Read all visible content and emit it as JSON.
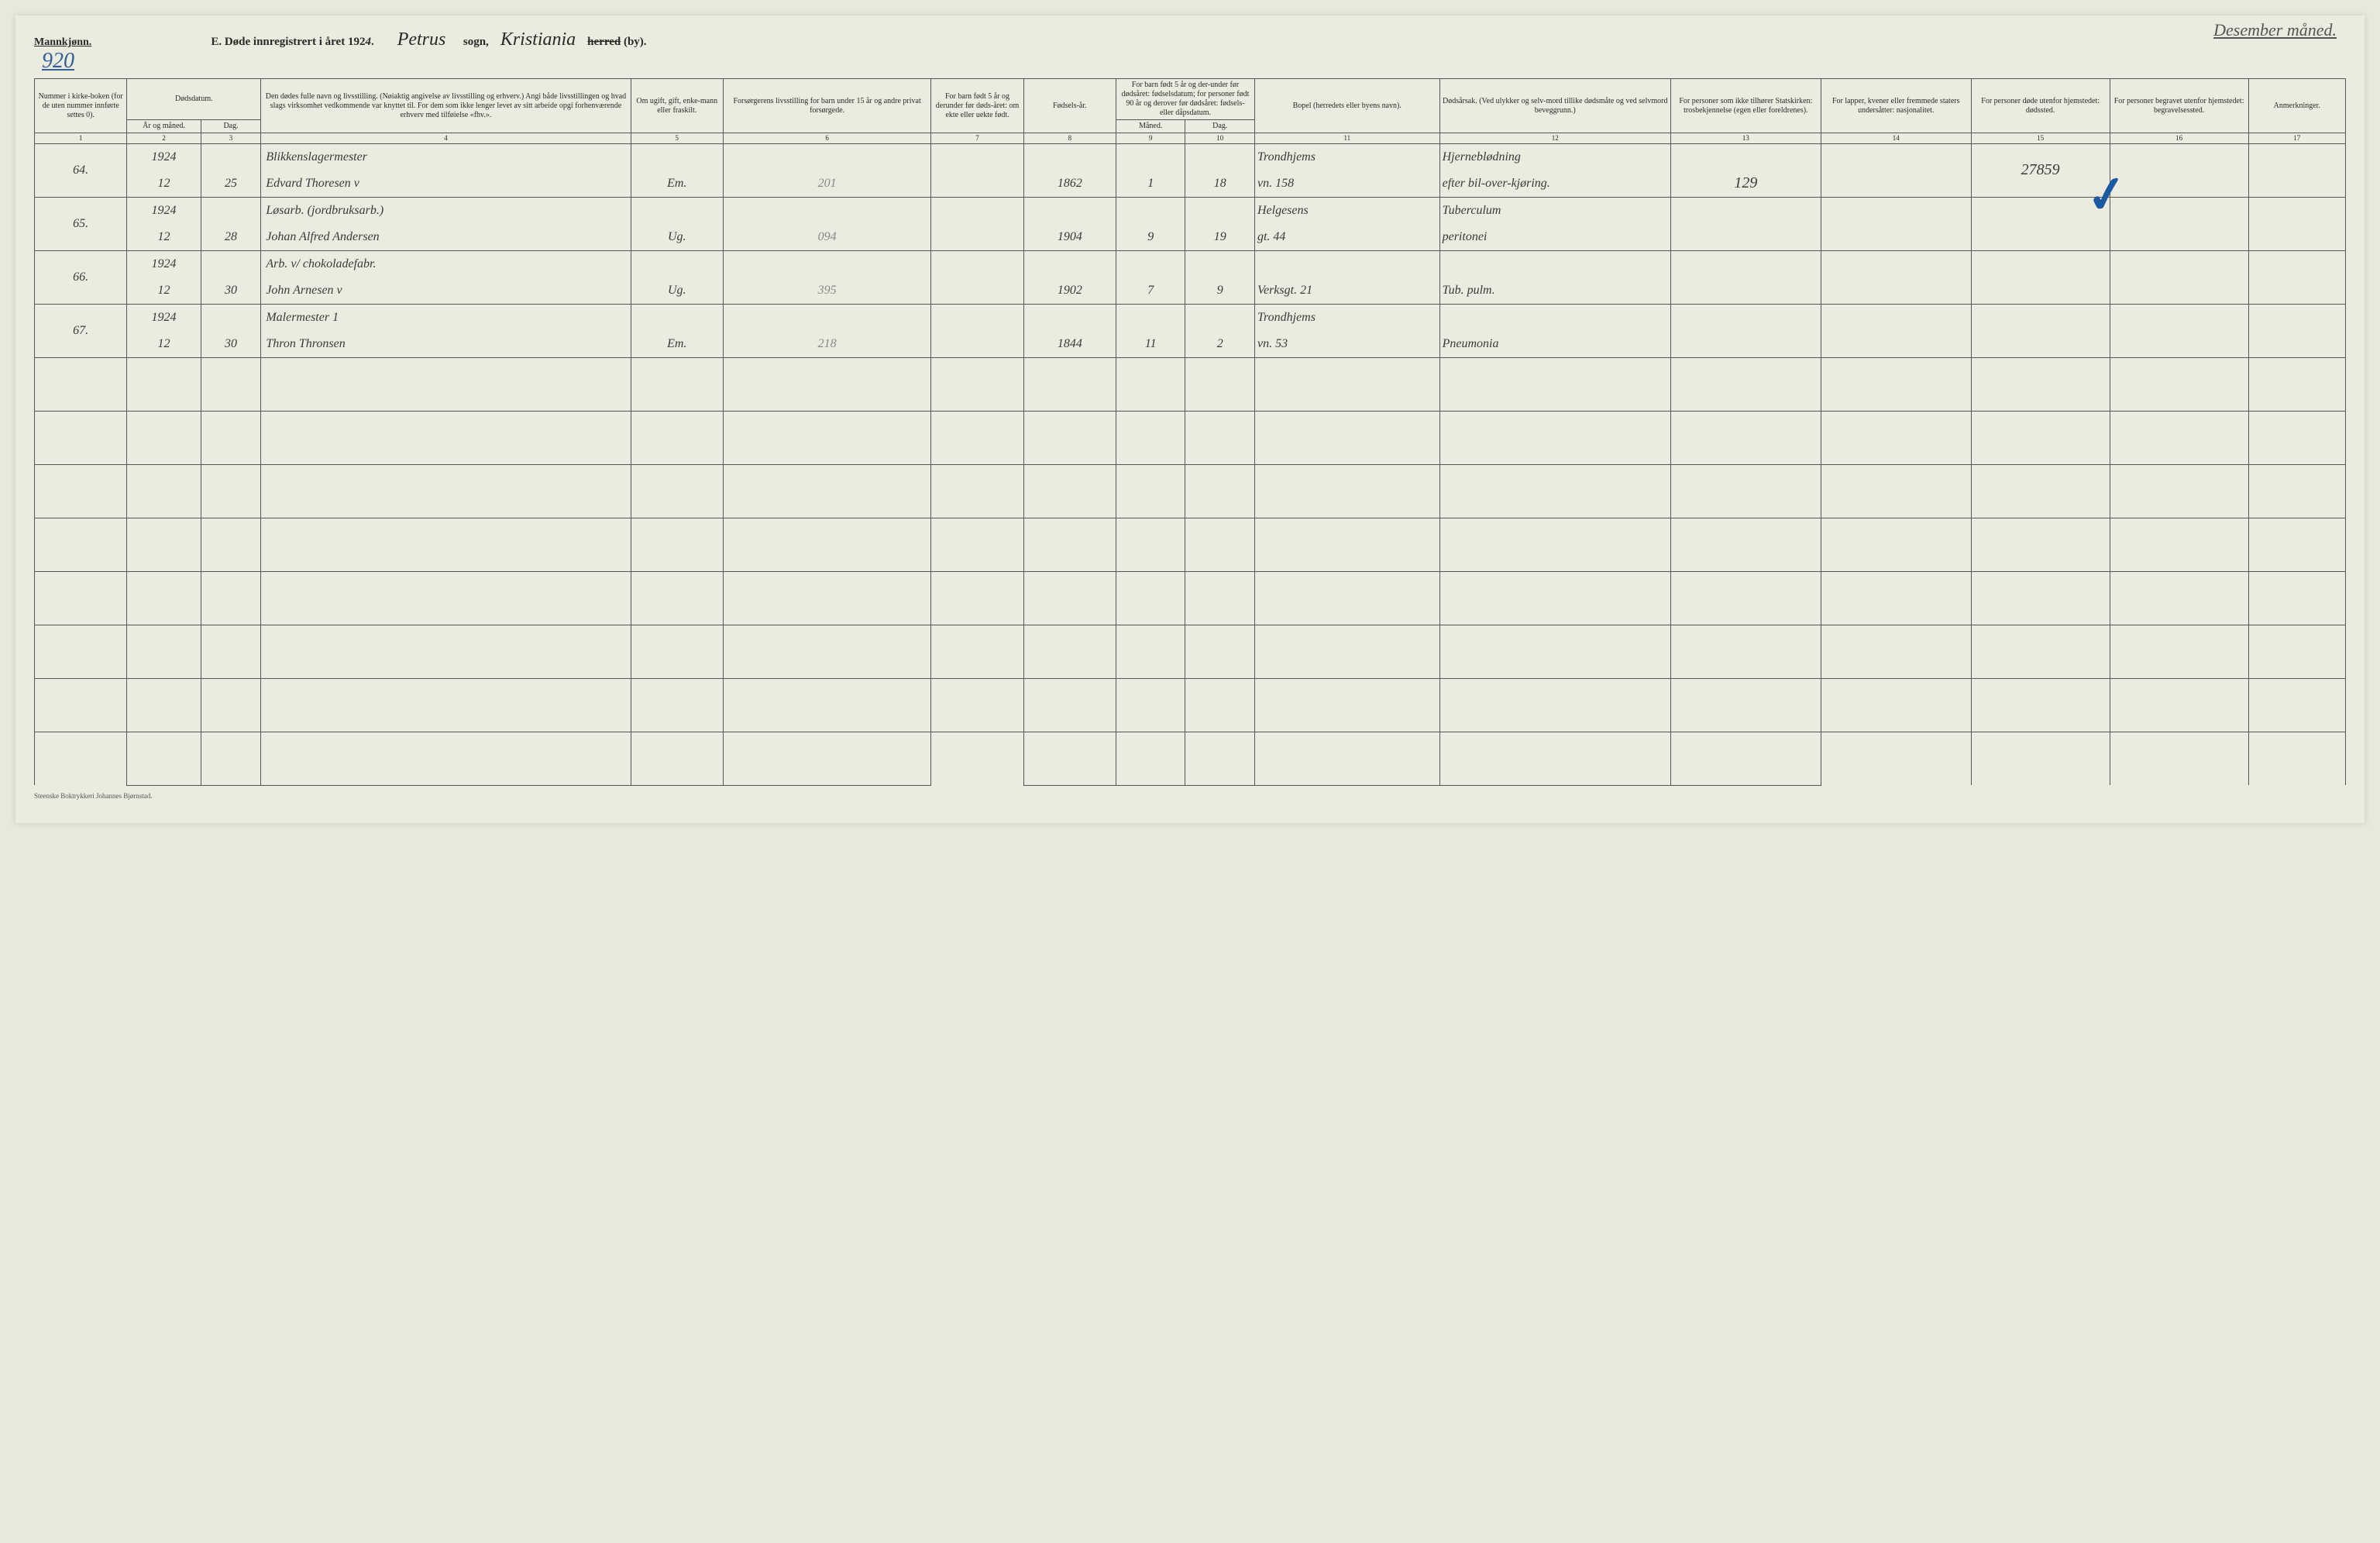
{
  "header": {
    "mannkjonn": "Mannkjønn.",
    "page_number": "920",
    "title_prefix": "E.  Døde innregistrert i året 192",
    "year_suffix": "4",
    "title_dot": ".",
    "sogn_value": "Petrus",
    "sogn_label": "sogn,",
    "herred_value": "Kristiania",
    "herred_struck": "herred",
    "herred_by": "(by).",
    "month_note": "Desember måned."
  },
  "columns": {
    "c1": "Nummer i kirke-boken (for de uten nummer innførte settes 0).",
    "c2_top": "Dødsdatum.",
    "c2a": "År og måned.",
    "c2b": "Dag.",
    "c4": "Den dødes fulle navn og livsstilling. (Nøiaktig angivelse av livsstilling og erhverv.) Angi både livsstillingen og hvad slags virksomhet vedkommende var knyttet til. For dem som ikke lenger levet av sitt arbeide opgi forhenværende erhverv med tilføielse «fhv.».",
    "c5": "Om ugift, gift, enke-mann eller fraskilt.",
    "c6": "Forsørgerens livsstilling for barn under 15 år og andre privat forsørgede.",
    "c7": "For barn født 5 år og derunder før døds-året: om ekte eller uekte født.",
    "c8": "Fødsels-år.",
    "c9_top": "For barn født 5 år og der-under før dødsåret: fødselsdatum; for personer født 90 år og derover før dødsåret: fødsels- eller dåpsdatum.",
    "c9a": "Måned.",
    "c9b": "Dag.",
    "c11": "Bopel (herredets eller byens navn).",
    "c12": "Dødsårsak. (Ved ulykker og selv-mord tillike dødsmåte og ved selvmord beveggrunn.)",
    "c13": "For personer som ikke tilhører Statskirken: trosbekjennelse (egen eller foreldrenes).",
    "c14": "For lapper, kvener eller fremmede staters undersåtter: nasjonalitet.",
    "c15": "For personer døde utenfor hjemstedet: dødssted.",
    "c16": "For personer begravet utenfor hjemstedet: begravelsessted.",
    "c17": "Anmerkninger."
  },
  "colnums": [
    "1",
    "2",
    "3",
    "4",
    "5",
    "6",
    "7",
    "8",
    "9",
    "10",
    "11",
    "12",
    "13",
    "14",
    "15",
    "16",
    "17"
  ],
  "rows": [
    {
      "num": "64.",
      "yr_top": "1924",
      "yr_bot": "12",
      "day": "25",
      "name_top": "Blikkenslagermester",
      "name_bot": "Edvard Thoresen   v",
      "status": "Em.",
      "forsorger": "201",
      "c7": "",
      "birth_yr": "1862",
      "b_mnd": "1",
      "b_dag": "18",
      "bopel_top": "Trondhjems",
      "bopel_bot": "vn. 158",
      "cause_top": "Hjerneblødning",
      "cause_bot": "efter bil-over-kjøring.",
      "c13": "129",
      "c15": "27859"
    },
    {
      "num": "65.",
      "yr_top": "1924",
      "yr_bot": "12",
      "day": "28",
      "name_top": "Løsarb. (jordbruksarb.)",
      "name_bot": "Johan Alfred Andersen",
      "status": "Ug.",
      "forsorger": "094",
      "c7": "",
      "birth_yr": "1904",
      "b_mnd": "9",
      "b_dag": "19",
      "bopel_top": "Helgesens",
      "bopel_bot": "gt. 44",
      "cause_top": "Tuberculum",
      "cause_bot": "peritonei",
      "c13": "",
      "c15": ""
    },
    {
      "num": "66.",
      "yr_top": "1924",
      "yr_bot": "12",
      "day": "30",
      "name_top": "Arb. v/ chokoladefabr.",
      "name_bot": "John Arnesen   v",
      "status": "Ug.",
      "forsorger": "395",
      "c7": "",
      "birth_yr": "1902",
      "b_mnd": "7",
      "b_dag": "9",
      "bopel_top": "",
      "bopel_bot": "Verksgt. 21",
      "cause_top": "",
      "cause_bot": "Tub. pulm.",
      "c13": "",
      "c15": ""
    },
    {
      "num": "67.",
      "yr_top": "1924",
      "yr_bot": "12",
      "day": "30",
      "name_top": "Malermester    1",
      "name_bot": "Thron Thronsen",
      "status": "Em.",
      "forsorger": "218",
      "c7": "",
      "birth_yr": "1844",
      "b_mnd": "11",
      "b_dag": "2",
      "bopel_top": "Trondhjems",
      "bopel_bot": "vn. 53",
      "cause_top": "",
      "cause_bot": "Pneumonia",
      "c13": "",
      "c15": ""
    }
  ],
  "blank_row_count": 8,
  "footer": "Steenske Boktrykkeri Johannes Bjørnstad.",
  "style": {
    "paper_bg": "#ecebdf",
    "ink": "#2a2a2a",
    "blue_ink": "#2e5f9a",
    "border": "#555555",
    "header_font_size_pt": 10,
    "body_font_size_pt": 16,
    "colwidths_pct": [
      4,
      3.2,
      2.6,
      16,
      4,
      9,
      4,
      4,
      3,
      3,
      8,
      10,
      6.5,
      6.5,
      6,
      6,
      4.2
    ]
  }
}
